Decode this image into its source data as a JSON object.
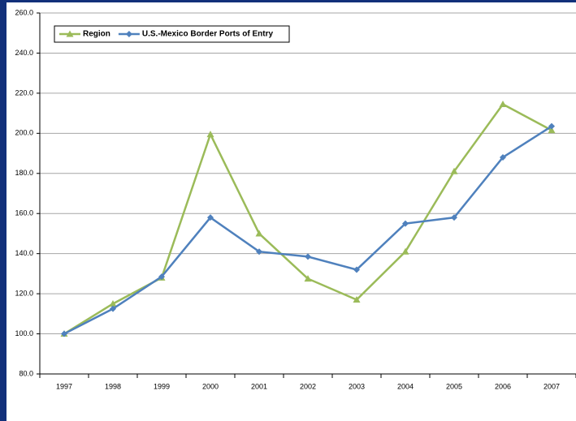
{
  "chart_data": {
    "type": "line",
    "categories": [
      "1997",
      "1998",
      "1999",
      "2000",
      "2001",
      "2002",
      "2003",
      "2004",
      "2005",
      "2006",
      "2007"
    ],
    "series": [
      {
        "name": "Region",
        "color": "#9bbb59",
        "marker": "triangle",
        "values": [
          100,
          115,
          128,
          199.5,
          150,
          127.5,
          117,
          141,
          181,
          214.5,
          201.5
        ]
      },
      {
        "name": "U.S.-Mexico Border Ports of Entry",
        "color": "#4f81bd",
        "marker": "diamond",
        "values": [
          100,
          112.5,
          128.5,
          158,
          141,
          138.5,
          132,
          155,
          158,
          188,
          203.5
        ]
      }
    ],
    "ylim": [
      80,
      260
    ],
    "yticks": [
      {
        "value": 80,
        "label": "80.0"
      },
      {
        "value": 100,
        "label": "100.0"
      },
      {
        "value": 120,
        "label": "120.0"
      },
      {
        "value": 140,
        "label": "140.0"
      },
      {
        "value": 160,
        "label": "160.0"
      },
      {
        "value": 180,
        "label": "180.0"
      },
      {
        "value": 200,
        "label": "200.0"
      },
      {
        "value": 220,
        "label": "220.0"
      },
      {
        "value": 240,
        "label": "240.0"
      },
      {
        "value": 260,
        "label": "260.0"
      }
    ],
    "grid": true
  }
}
